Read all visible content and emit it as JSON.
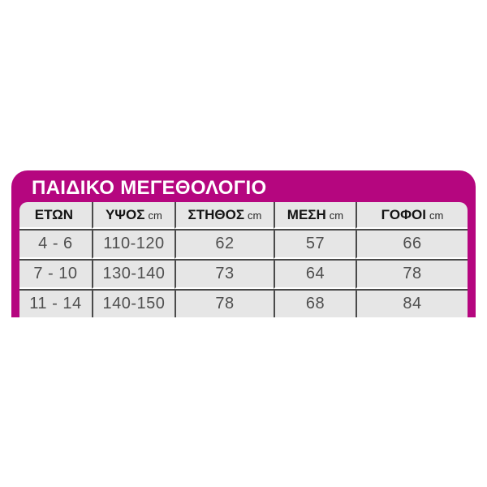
{
  "panel": {
    "title": "ΠΑΙΔΙΚΟ ΜΕΓΕΘΟΛΟΓΙΟ",
    "background_color": "#b5067f",
    "title_color": "#ffffff"
  },
  "size_table": {
    "cell_background": "#e6e6e6",
    "grid_line_color": "#4a4a4a",
    "row_gap_color": "#ffffff",
    "header_text_color": "#141414",
    "data_text_color": "#4f4f4f",
    "columns": [
      {
        "label": "ΕΤΩΝ",
        "unit": ""
      },
      {
        "label": "ΥΨΟΣ",
        "unit": "cm"
      },
      {
        "label": "ΣΤΗΘΟΣ",
        "unit": "cm"
      },
      {
        "label": "ΜΕΣΗ",
        "unit": "cm"
      },
      {
        "label": "ΓΟΦΟΙ",
        "unit": "cm"
      }
    ],
    "rows": [
      [
        "4 - 6",
        "110-120",
        "62",
        "57",
        "66"
      ],
      [
        "7 - 10",
        "130-140",
        "73",
        "64",
        "78"
      ],
      [
        "11 - 14",
        "140-150",
        "78",
        "68",
        "84"
      ]
    ]
  },
  "chart_data": {
    "type": "table",
    "title": "ΠΑΙΔΙΚΟ ΜΕΓΕΘΟΛΟΓΙΟ",
    "columns": [
      "ΕΤΩΝ",
      "ΥΨΟΣ cm",
      "ΣΤΗΘΟΣ cm",
      "ΜΕΣΗ cm",
      "ΓΟΦΟΙ cm"
    ],
    "rows": [
      [
        "4 - 6",
        "110-120",
        "62",
        "57",
        "66"
      ],
      [
        "7 - 10",
        "130-140",
        "73",
        "64",
        "78"
      ],
      [
        "11 - 14",
        "140-150",
        "78",
        "68",
        "84"
      ]
    ]
  }
}
